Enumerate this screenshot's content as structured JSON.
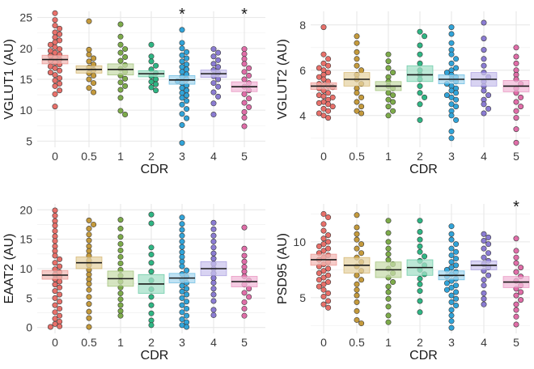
{
  "chart_data": [
    {
      "type": "scatter",
      "id": "vglut1",
      "ylabel": "VGLUT1 (AU)",
      "xlabel": "CDR",
      "categories": [
        "0",
        "0.5",
        "1",
        "2",
        "3",
        "4",
        "5"
      ],
      "ylim": [
        4,
        26
      ],
      "yticks": [
        5,
        10,
        15,
        20,
        25
      ],
      "significant": [
        false,
        false,
        false,
        false,
        true,
        false,
        true
      ],
      "star_label": "*",
      "groups": [
        {
          "mean": 18.2,
          "lo": 17.5,
          "hi": 18.9,
          "points": [
            25.7,
            24.6,
            23.7,
            23.2,
            22.6,
            22.3,
            21.8,
            21.3,
            21.0,
            20.6,
            20.2,
            19.9,
            19.6,
            19.3,
            19.0,
            18.8,
            18.5,
            18.2,
            18.0,
            17.7,
            17.4,
            17.1,
            16.8,
            16.4,
            16.1,
            15.7,
            15.2,
            14.8,
            14.3,
            13.9,
            13.2,
            12.6,
            10.6
          ]
        },
        {
          "mean": 16.6,
          "lo": 16.0,
          "hi": 17.2,
          "points": [
            24.4,
            19.8,
            19.0,
            18.4,
            17.9,
            17.4,
            16.9,
            16.5,
            16.0,
            15.6,
            15.0,
            14.4,
            13.6,
            12.9
          ]
        },
        {
          "mean": 16.6,
          "lo": 15.7,
          "hi": 17.5,
          "points": [
            23.9,
            21.9,
            20.6,
            19.9,
            19.3,
            18.6,
            18.0,
            17.3,
            16.7,
            16.2,
            15.6,
            15.1,
            14.5,
            13.9,
            13.3,
            12.0,
            9.9,
            9.3
          ]
        },
        {
          "mean": 15.9,
          "lo": 15.4,
          "hi": 16.4,
          "points": [
            20.6,
            18.7,
            17.9,
            17.2,
            16.6,
            16.0,
            15.5,
            15.0,
            14.6,
            14.2,
            13.7,
            13.2
          ]
        },
        {
          "mean": 14.9,
          "lo": 14.2,
          "hi": 15.6,
          "points": [
            23.0,
            20.9,
            20.0,
            19.4,
            18.9,
            18.4,
            17.9,
            17.4,
            17.0,
            16.6,
            16.2,
            15.8,
            15.4,
            15.0,
            14.7,
            14.4,
            14.0,
            13.6,
            13.2,
            12.8,
            12.4,
            12.0,
            11.5,
            10.9,
            10.2,
            9.4,
            8.7,
            7.6,
            4.7
          ]
        },
        {
          "mean": 15.9,
          "lo": 15.3,
          "hi": 16.5,
          "points": [
            19.9,
            19.3,
            18.7,
            18.1,
            17.5,
            17.0,
            16.5,
            16.0,
            15.5,
            15.0,
            14.4,
            13.8,
            12.9,
            12.2,
            11.1,
            9.3
          ]
        },
        {
          "mean": 13.8,
          "lo": 13.0,
          "hi": 14.6,
          "points": [
            19.9,
            19.1,
            18.3,
            17.5,
            16.8,
            16.2,
            15.6,
            15.0,
            14.4,
            13.8,
            13.2,
            12.6,
            11.9,
            11.2,
            10.5,
            9.7,
            8.8,
            7.4
          ]
        }
      ]
    },
    {
      "type": "scatter",
      "id": "vglut2",
      "ylabel": "VGLUT2 (AU)",
      "xlabel": "CDR",
      "categories": [
        "0",
        "0.5",
        "1",
        "2",
        "3",
        "4",
        "5"
      ],
      "ylim": [
        2.6,
        8.6
      ],
      "yticks": [
        4,
        6,
        8
      ],
      "significant": [
        false,
        false,
        false,
        false,
        false,
        false,
        false
      ],
      "star_label": "*",
      "groups": [
        {
          "mean": 5.3,
          "lo": 5.15,
          "hi": 5.45,
          "points": [
            7.9,
            6.7,
            6.5,
            6.3,
            6.2,
            6.1,
            6.0,
            5.9,
            5.8,
            5.7,
            5.6,
            5.5,
            5.4,
            5.35,
            5.3,
            5.25,
            5.2,
            5.1,
            5.0,
            4.9,
            4.85,
            4.8,
            4.7,
            4.6,
            4.55,
            4.5,
            4.4,
            4.3,
            4.2,
            4.1,
            4.0,
            3.9
          ]
        },
        {
          "mean": 5.6,
          "lo": 5.3,
          "hi": 5.9,
          "points": [
            7.5,
            7.2,
            6.8,
            6.5,
            6.2,
            6.0,
            5.8,
            5.6,
            5.4,
            5.2,
            5.0,
            4.8,
            4.6,
            4.4,
            4.2,
            4.1
          ]
        },
        {
          "mean": 5.3,
          "lo": 5.1,
          "hi": 5.5,
          "points": [
            6.7,
            6.4,
            6.1,
            5.9,
            5.7,
            5.5,
            5.3,
            5.2,
            5.0,
            4.9,
            4.7,
            4.6,
            4.4,
            4.2,
            4.0
          ]
        },
        {
          "mean": 5.8,
          "lo": 5.5,
          "hi": 6.2,
          "points": [
            7.7,
            7.5,
            7.1,
            6.7,
            6.3,
            6.0,
            5.8,
            5.6,
            5.3,
            5.0,
            4.8,
            4.5,
            3.8
          ]
        },
        {
          "mean": 5.6,
          "lo": 5.4,
          "hi": 5.8,
          "points": [
            7.9,
            7.6,
            7.2,
            6.9,
            6.7,
            6.5,
            6.3,
            6.1,
            6.0,
            5.9,
            5.8,
            5.7,
            5.6,
            5.5,
            5.4,
            5.3,
            5.2,
            5.1,
            5.0,
            4.9,
            4.8,
            4.7,
            4.5,
            4.4,
            4.2,
            4.0,
            3.8,
            3.3,
            3.0
          ]
        },
        {
          "mean": 5.6,
          "lo": 5.3,
          "hi": 5.9,
          "points": [
            8.1,
            7.4,
            6.9,
            6.5,
            6.2,
            5.9,
            5.7,
            5.5,
            5.3,
            5.1,
            4.9,
            4.7,
            4.5,
            4.3,
            4.1
          ]
        },
        {
          "mean": 5.3,
          "lo": 5.05,
          "hi": 5.55,
          "points": [
            7.0,
            6.6,
            6.3,
            6.0,
            5.8,
            5.6,
            5.4,
            5.2,
            5.0,
            4.8,
            4.6,
            4.4,
            4.2,
            3.9,
            3.4,
            2.8
          ]
        }
      ]
    },
    {
      "type": "scatter",
      "id": "eaat2",
      "ylabel": "EAAT2 (AU)",
      "xlabel": "CDR",
      "categories": [
        "0",
        "0.5",
        "1",
        "2",
        "3",
        "4",
        "5"
      ],
      "ylim": [
        -1,
        21
      ],
      "yticks": [
        0,
        5,
        10,
        15,
        20
      ],
      "significant": [
        false,
        false,
        false,
        false,
        false,
        false,
        false
      ],
      "star_label": "*",
      "groups": [
        {
          "mean": 8.9,
          "lo": 8.2,
          "hi": 9.7,
          "points": [
            19.9,
            19.0,
            18.1,
            17.3,
            16.4,
            15.5,
            14.7,
            13.8,
            13.0,
            12.2,
            11.6,
            11.0,
            10.4,
            9.9,
            9.4,
            9.0,
            8.6,
            8.2,
            7.8,
            7.3,
            6.8,
            6.2,
            5.6,
            5.0,
            4.4,
            3.8,
            3.2,
            2.6,
            2.0,
            1.5,
            1.0,
            0.6,
            0.2,
            0.1
          ]
        },
        {
          "mean": 11.0,
          "lo": 10.0,
          "hi": 12.0,
          "points": [
            18.2,
            17.5,
            16.8,
            15.8,
            14.8,
            13.8,
            13.0,
            12.2,
            11.4,
            10.6,
            9.8,
            9.0,
            8.2,
            7.4,
            6.4,
            5.2,
            4.0,
            2.7,
            1.6,
            0.1
          ]
        },
        {
          "mean": 8.3,
          "lo": 7.0,
          "hi": 9.6,
          "points": [
            18.3,
            16.8,
            15.4,
            14.2,
            13.1,
            12.0,
            10.9,
            9.8,
            8.8,
            7.8,
            6.8,
            5.8,
            4.8,
            3.8,
            2.8,
            2.0
          ]
        },
        {
          "mean": 7.4,
          "lo": 5.8,
          "hi": 9.0,
          "points": [
            19.2,
            17.7,
            13.6,
            12.4,
            11.0,
            9.5,
            8.0,
            6.5,
            5.2,
            3.8,
            2.4,
            1.2,
            0.4
          ]
        },
        {
          "mean": 8.4,
          "lo": 7.6,
          "hi": 9.2,
          "points": [
            18.7,
            17.6,
            16.6,
            15.6,
            14.6,
            13.7,
            12.8,
            12.0,
            11.2,
            10.4,
            9.7,
            9.1,
            8.6,
            8.1,
            7.6,
            7.1,
            6.6,
            6.1,
            5.6,
            5.0,
            4.4,
            3.8,
            3.2,
            2.6,
            2.0,
            1.4,
            0.9,
            0.4,
            0.1
          ]
        },
        {
          "mean": 10.0,
          "lo": 8.8,
          "hi": 11.2,
          "points": [
            17.8,
            16.7,
            15.6,
            14.6,
            13.6,
            12.6,
            11.7,
            10.8,
            10.0,
            9.2,
            8.4,
            7.6,
            6.6,
            5.6,
            4.5,
            3.0,
            2.1
          ]
        },
        {
          "mean": 7.8,
          "lo": 6.9,
          "hi": 8.7,
          "points": [
            17.0,
            13.4,
            12.2,
            11.2,
            10.3,
            9.5,
            8.7,
            8.0,
            7.3,
            6.6,
            5.9,
            5.2,
            4.3,
            3.2,
            2.0
          ]
        }
      ]
    },
    {
      "type": "scatter",
      "id": "psd95",
      "ylabel": "PSD95 (AU)",
      "xlabel": "CDR",
      "categories": [
        "0",
        "0.5",
        "1",
        "2",
        "3",
        "4",
        "5"
      ],
      "ylim": [
        1.8,
        13.4
      ],
      "yticks": [
        5,
        10
      ],
      "significant": [
        false,
        false,
        false,
        false,
        false,
        false,
        true
      ],
      "star_label": "*",
      "groups": [
        {
          "mean": 8.4,
          "lo": 7.9,
          "hi": 8.9,
          "points": [
            12.5,
            12.2,
            11.6,
            11.0,
            10.6,
            10.3,
            10.0,
            9.8,
            9.6,
            9.4,
            9.2,
            9.0,
            8.8,
            8.6,
            8.4,
            8.2,
            8.0,
            7.8,
            7.6,
            7.4,
            7.2,
            7.0,
            6.8,
            6.6,
            6.4,
            6.2,
            6.0,
            5.7,
            5.4,
            5.1,
            4.7,
            4.4,
            4.1
          ]
        },
        {
          "mean": 7.9,
          "lo": 7.2,
          "hi": 8.6,
          "points": [
            12.4,
            11.3,
            10.7,
            10.2,
            9.8,
            9.4,
            9.0,
            8.6,
            8.2,
            7.8,
            7.4,
            7.0,
            6.6,
            6.2,
            5.7,
            5.2,
            4.6,
            3.8,
            3.0,
            2.7
          ]
        },
        {
          "mean": 7.5,
          "lo": 6.8,
          "hi": 8.2,
          "points": [
            11.9,
            10.8,
            10.0,
            9.4,
            8.9,
            8.4,
            8.0,
            7.6,
            7.2,
            6.8,
            6.4,
            6.0,
            5.5,
            4.9,
            4.2,
            3.4,
            2.8
          ]
        },
        {
          "mean": 7.7,
          "lo": 7.0,
          "hi": 8.4,
          "points": [
            11.9,
            10.9,
            10.2,
            9.6,
            9.1,
            8.7,
            8.3,
            7.9,
            7.5,
            7.1,
            6.7,
            6.2,
            5.6,
            4.7,
            3.7
          ]
        },
        {
          "mean": 7.0,
          "lo": 6.6,
          "hi": 7.4,
          "points": [
            11.4,
            10.7,
            10.2,
            9.8,
            9.4,
            9.1,
            8.8,
            8.5,
            8.2,
            7.9,
            7.7,
            7.5,
            7.3,
            7.1,
            6.9,
            6.7,
            6.5,
            6.3,
            6.1,
            5.9,
            5.7,
            5.5,
            5.2,
            4.9,
            4.6,
            4.3,
            3.9,
            3.4,
            2.9,
            2.3
          ]
        },
        {
          "mean": 7.9,
          "lo": 7.5,
          "hi": 8.3,
          "points": [
            10.7,
            10.4,
            10.1,
            9.8,
            9.4,
            9.0,
            8.6,
            8.3,
            8.0,
            7.7,
            7.4,
            7.0,
            6.6,
            6.1,
            5.4,
            4.9,
            4.4
          ]
        },
        {
          "mean": 6.4,
          "lo": 5.9,
          "hi": 6.9,
          "points": [
            10.3,
            9.2,
            8.6,
            8.1,
            7.7,
            7.3,
            6.9,
            6.5,
            6.1,
            5.8,
            5.5,
            5.2,
            4.8,
            4.4,
            3.9,
            3.3,
            2.6
          ]
        }
      ]
    }
  ],
  "colors": {
    "fill": [
      "#e8706a",
      "#c49a3c",
      "#7dab4a",
      "#2fb684",
      "#31a4d9",
      "#8b7cd3",
      "#e06da8"
    ],
    "band": [
      "#f2bab6",
      "#e6d3a4",
      "#c8dcac",
      "#a6e0c8",
      "#a9d8ef",
      "#cbc4ee",
      "#f2b9d8"
    ],
    "mean_line": "#1a1a1a",
    "dot_stroke": "#3a3a3a",
    "grid": "#e6e6e6"
  }
}
